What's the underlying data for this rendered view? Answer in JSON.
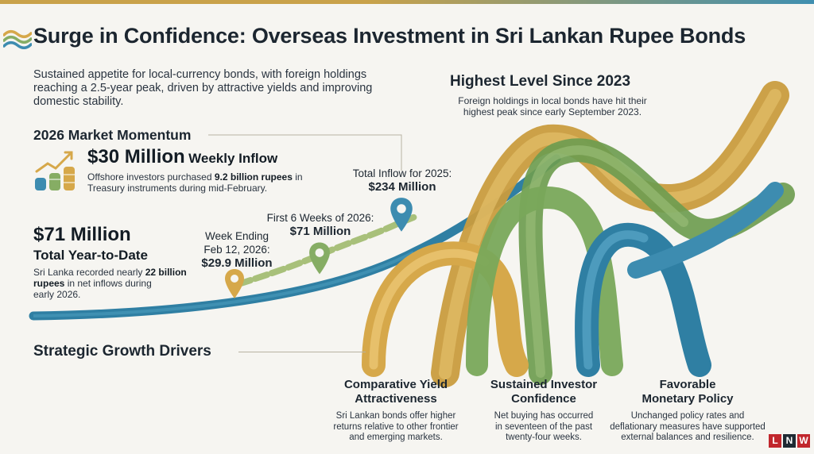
{
  "header": {
    "title": "Surge in Confidence: Overseas Investment in Sri Lankan Rupee Bonds",
    "intro": "Sustained appetite for local-currency bonds, with foreign holdings reaching a 2.5-year peak, driven by attractive yields and improving domestic stability."
  },
  "highlight": {
    "title": "Highest Level Since 2023",
    "line1": "Foreign holdings in local bonds have hit their",
    "line2": "highest peak since early September 2023."
  },
  "momentum": {
    "title": "2026 Market Momentum",
    "weekly_value": "$30 Million",
    "weekly_label": "Weekly Inflow",
    "desc_pre": "Offshore investors purchased ",
    "desc_bold": "9.2 billion rupees",
    "desc_post": " in",
    "desc_line2": "Treasury instruments during mid-February."
  },
  "ytd": {
    "value": "$71 Million",
    "label": "Total Year-to-Date",
    "desc_pre": "Sri Lanka recorded nearly ",
    "desc_bold1": "22 billion",
    "desc_bold2": "rupees",
    "desc_post": " in net inflows during",
    "desc_line3": "early 2026."
  },
  "markers": [
    {
      "line1": "Week Ending",
      "line2": "Feb 12, 2026:",
      "value": "$29.9 Million",
      "color": "#d6a84a"
    },
    {
      "line1": "First 6 Weeks of 2026:",
      "value": "$71 Million",
      "color": "#86ad64"
    },
    {
      "line1": "Total Inflow for 2025:",
      "value": "$234 Million",
      "color": "#3d8cb0"
    }
  ],
  "drivers_section": {
    "title": "Strategic Growth Drivers"
  },
  "drivers": [
    {
      "title_l1": "Comparative Yield",
      "title_l2": "Attractiveness",
      "desc_l1": "Sri Lankan bonds offer higher",
      "desc_l2": "returns relative to other frontier",
      "desc_l3": "and emerging markets."
    },
    {
      "title_l1": "Sustained Investor",
      "title_l2": "Confidence",
      "desc_l1": "Net buying has occurred",
      "desc_l2": "in seventeen of the past",
      "desc_l3": "twenty-four weeks."
    },
    {
      "title_l1": "Favorable",
      "title_l2": "Monetary Policy",
      "desc_l1": "Unchanged policy rates and",
      "desc_l2": "deflationary measures have supported",
      "desc_l3": "external balances and resilience."
    }
  ],
  "brand": {
    "letters": [
      "L",
      "N",
      "W"
    ]
  },
  "colors": {
    "gold": "#d6a84a",
    "green": "#86ad64",
    "teal": "#3d8cb0",
    "accent_red": "#c1272d"
  },
  "icons": {
    "logo": "wave-logo-icon",
    "growth": "coins-growth-icon",
    "pin": "map-pin-icon"
  }
}
